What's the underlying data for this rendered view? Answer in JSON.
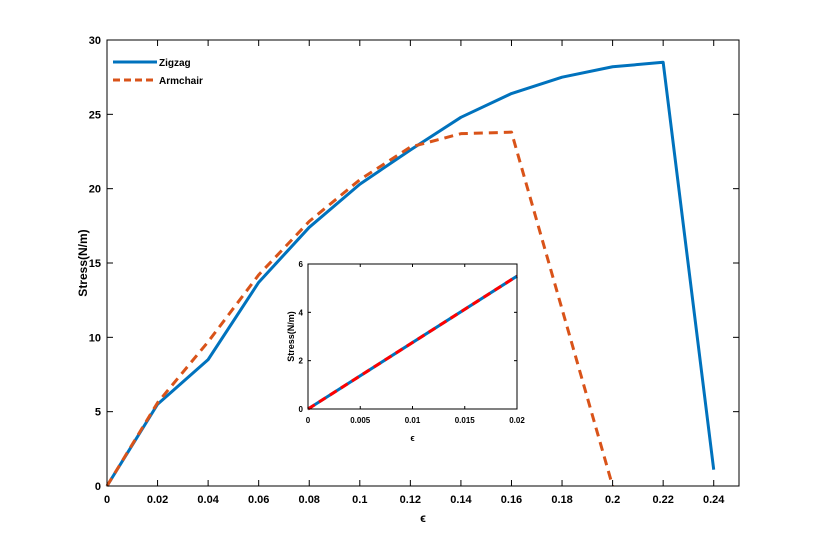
{
  "chart_data": [
    {
      "type": "line",
      "title": "",
      "xlabel": "ϵ",
      "ylabel": "Stress(N/m)",
      "xlim": [
        0,
        0.25
      ],
      "ylim": [
        0,
        30
      ],
      "xticks": [
        0,
        0.02,
        0.04,
        0.06,
        0.08,
        0.1,
        0.12,
        0.14,
        0.16,
        0.18,
        0.2,
        0.22,
        0.24
      ],
      "xtick_labels": [
        "0",
        "0.02",
        "0.04",
        "0.06",
        "0.08",
        "0.1",
        "0.12",
        "0.14",
        "0.16",
        "0.18",
        "0.2",
        "0.22",
        "0.24"
      ],
      "yticks": [
        0,
        5,
        10,
        15,
        20,
        25,
        30
      ],
      "ytick_labels": [
        "0",
        "5",
        "10",
        "15",
        "20",
        "25",
        "30"
      ],
      "grid": false,
      "legend_position": "top-left",
      "series": [
        {
          "name": "Zigzag",
          "color": "#0072BD",
          "style": "solid",
          "x": [
            0,
            0.02,
            0.04,
            0.06,
            0.08,
            0.1,
            0.12,
            0.14,
            0.16,
            0.18,
            0.2,
            0.22,
            0.24
          ],
          "y": [
            0,
            5.5,
            8.5,
            13.7,
            17.4,
            20.3,
            22.6,
            24.8,
            26.4,
            27.5,
            28.2,
            28.5,
            1.1
          ]
        },
        {
          "name": "Armchair",
          "color": "#D95319",
          "style": "dashed",
          "x": [
            0,
            0.02,
            0.04,
            0.06,
            0.08,
            0.1,
            0.12,
            0.14,
            0.16,
            0.2
          ],
          "y": [
            0,
            5.6,
            9.7,
            14.2,
            17.8,
            20.6,
            22.8,
            23.7,
            23.8,
            0
          ]
        }
      ]
    },
    {
      "type": "line",
      "title": "",
      "xlabel": "ϵ",
      "ylabel": "Stress(N/m)",
      "xlim": [
        0,
        0.02
      ],
      "ylim": [
        0,
        6
      ],
      "xticks": [
        0,
        0.005,
        0.01,
        0.015,
        0.02
      ],
      "xtick_labels": [
        "0",
        "0.005",
        "0.01",
        "0.015",
        "0.02"
      ],
      "yticks": [
        0,
        2,
        4,
        6
      ],
      "ytick_labels": [
        "0",
        "2",
        "4",
        "6"
      ],
      "grid": false,
      "series": [
        {
          "name": "Zigzag",
          "color": "#0072BD",
          "style": "solid",
          "x": [
            0,
            0.02
          ],
          "y": [
            0,
            5.5
          ]
        },
        {
          "name": "Armchair",
          "color": "#FF0000",
          "style": "dashed",
          "x": [
            0,
            0.02
          ],
          "y": [
            0,
            5.5
          ]
        }
      ]
    }
  ]
}
